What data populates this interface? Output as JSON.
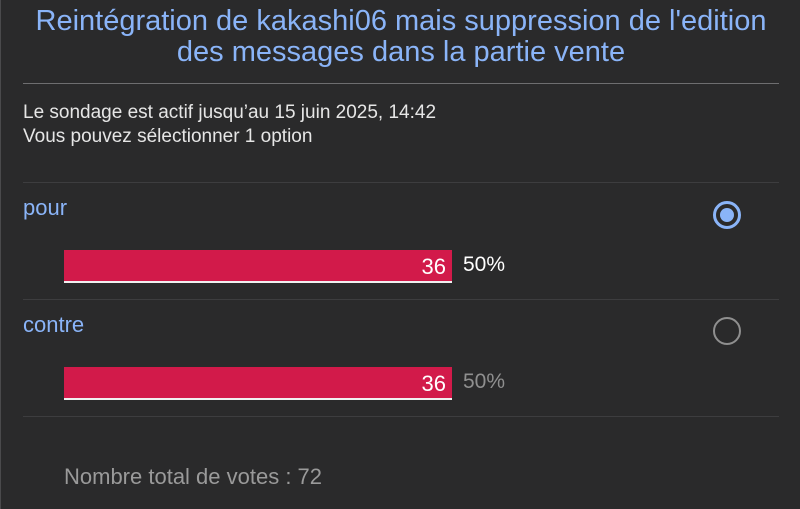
{
  "poll": {
    "title": "Reintégration de kakashi06 mais suppression de l'edition des messages dans la partie vente",
    "active_until": "Le sondage est actif jusqu’au 15 juin 2025, 14:42",
    "selection_hint": "Vous pouvez sélectionner 1 option",
    "options": [
      {
        "label": "pour",
        "votes": "36",
        "percent": "50%",
        "fraction": 0.5,
        "selected": true
      },
      {
        "label": "contre",
        "votes": "36",
        "percent": "50%",
        "fraction": 0.5,
        "selected": false
      }
    ],
    "total_votes": "Nombre total de votes : 72"
  },
  "colors": {
    "accent": "#8ab4f8",
    "bar": "#d21a4a",
    "background": "#2a2a2b"
  }
}
